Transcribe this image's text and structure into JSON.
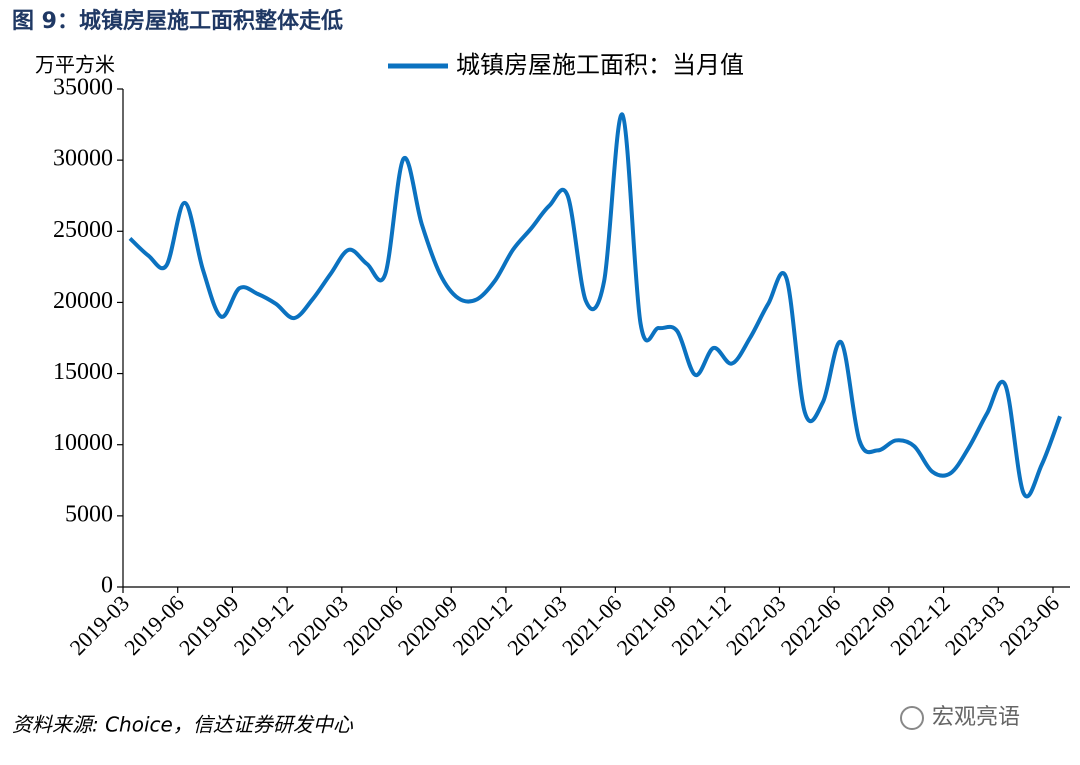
{
  "chart_data": {
    "type": "line",
    "title": "图 9：城镇房屋施工面积整体走低",
    "y_unit": "万平方米",
    "source": "资料来源: Choice，信达证券研发中心",
    "watermark": "宏观亮语",
    "categories": [
      "2019-03",
      null,
      null,
      "2019-06",
      null,
      null,
      "2019-09",
      null,
      null,
      "2019-12",
      null,
      null,
      "2020-03",
      null,
      null,
      "2020-06",
      null,
      null,
      "2020-09",
      null,
      null,
      "2020-12",
      null,
      null,
      "2021-03",
      null,
      null,
      "2021-06",
      null,
      null,
      "2021-09",
      null,
      null,
      "2021-12",
      null,
      null,
      "2022-03",
      null,
      null,
      "2022-06",
      null,
      null,
      "2022-09",
      null,
      null,
      "2022-12",
      null,
      null,
      "2023-03",
      null,
      null,
      "2023-06"
    ],
    "series": [
      {
        "name": "城镇房屋施工面积：当月值",
        "color": "#0b72c0",
        "values": [
          24500,
          23300,
          22600,
          27000,
          22300,
          19000,
          21000,
          20600,
          19900,
          18900,
          20200,
          22000,
          23700,
          22700,
          22000,
          30100,
          25500,
          22000,
          20300,
          20200,
          21500,
          23700,
          25200,
          26800,
          27500,
          20100,
          21500,
          33200,
          18500,
          18200,
          18000,
          14900,
          16800,
          15700,
          17500,
          19900,
          21700,
          12300,
          13000,
          17200,
          10300,
          9600,
          10300,
          9900,
          8100,
          8000,
          9800,
          12200,
          14200,
          6600,
          8600,
          12000
        ]
      }
    ],
    "ylim": [
      0,
      35000
    ],
    "yticks": [
      0,
      5000,
      10000,
      15000,
      20000,
      25000,
      30000,
      35000
    ],
    "legend": "top"
  }
}
